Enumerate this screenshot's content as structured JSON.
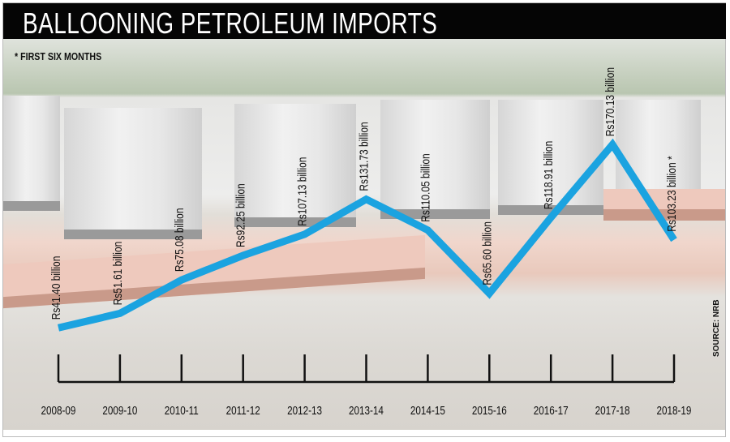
{
  "chart_data": {
    "type": "line",
    "title": "BALLOONING PETROLEUM IMPORTS",
    "note": "* FIRST SIX MONTHS",
    "source": "SOURCE: NRB",
    "xlabel": "",
    "ylabel": "",
    "categories": [
      "2008-09",
      "2009-10",
      "2010-11",
      "2011-12",
      "2012-13",
      "2013-14",
      "2014-15",
      "2015-16",
      "2016-17",
      "2017-18",
      "2018-19"
    ],
    "series": [
      {
        "name": "Petroleum imports (Rs billion)",
        "values": [
          41.4,
          51.61,
          75.08,
          92.25,
          107.13,
          131.73,
          110.05,
          65.6,
          118.91,
          170.13,
          103.23
        ],
        "labels": [
          "Rs41.40 billion",
          "Rs51.61 billion",
          "Rs75.08 billion",
          "Rs92.25 billion",
          "Rs107.13 billion",
          "Rs131.73 billion",
          "Rs110.05 billion",
          "Rs65.60 billion",
          "Rs118.91 billion",
          "Rs170.13 billion",
          "Rs103.23 billion *"
        ],
        "color": "#1ba3e0"
      }
    ],
    "ylim": [
      0,
      175
    ],
    "grid": false
  }
}
